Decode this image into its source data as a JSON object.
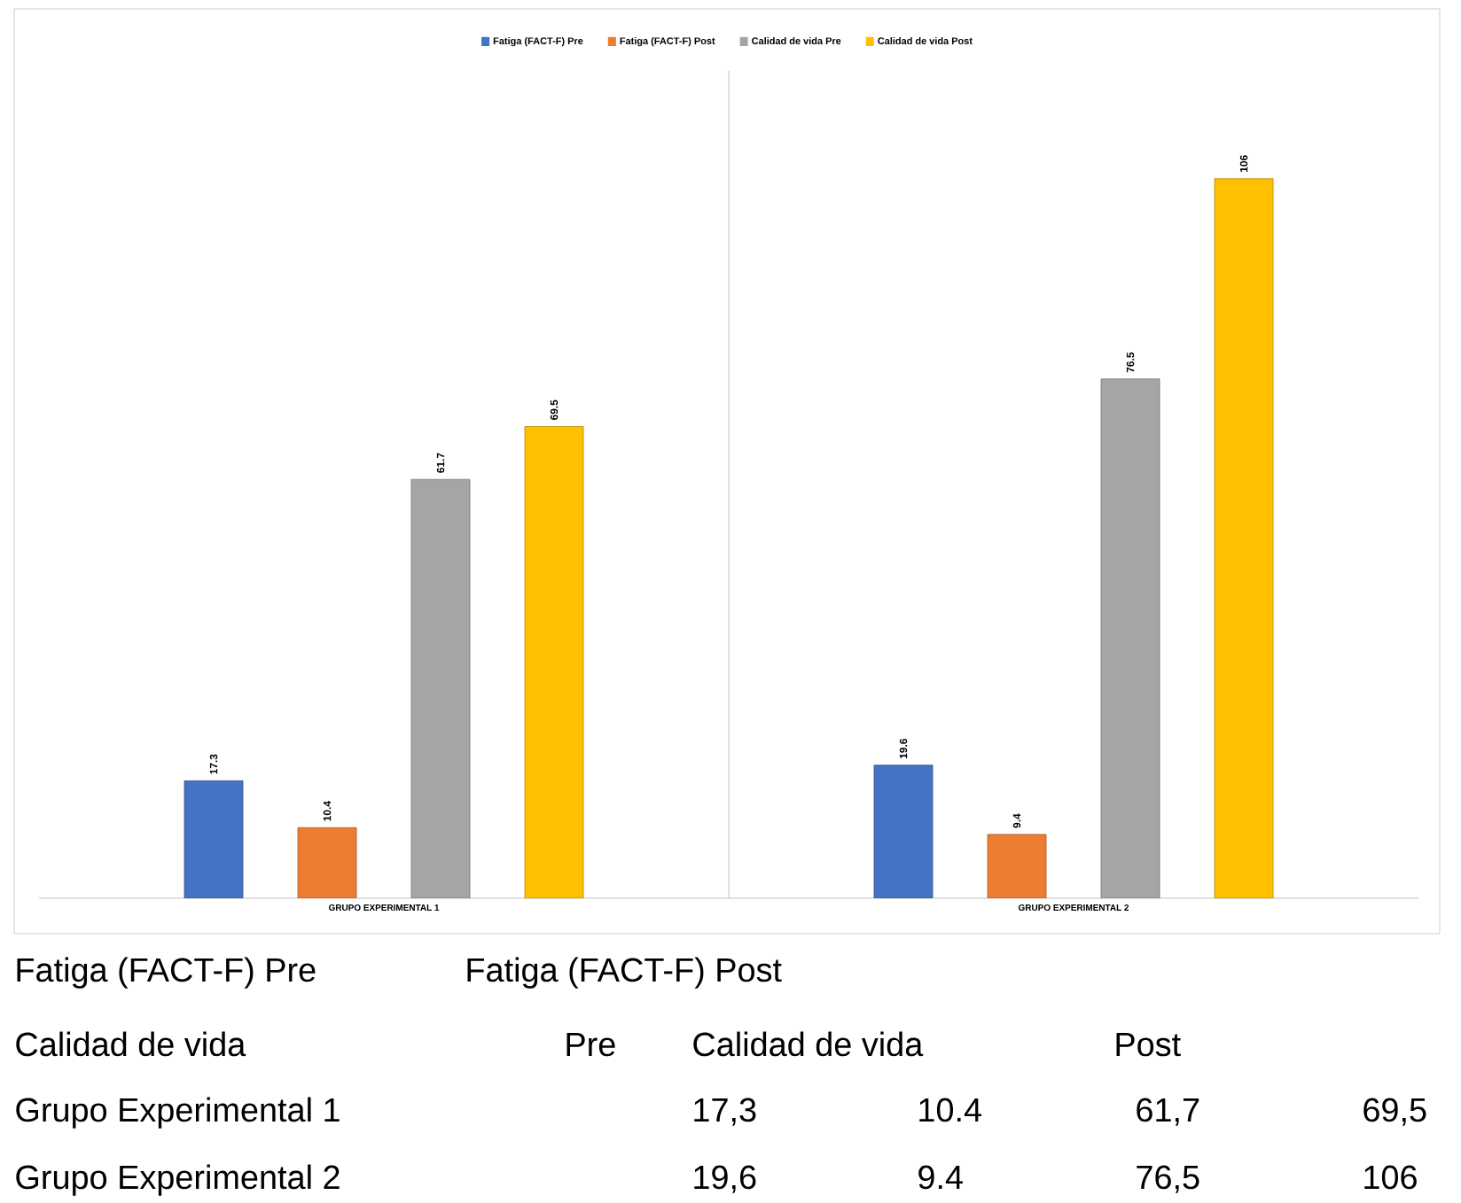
{
  "chart_data": {
    "type": "bar",
    "categories": [
      "GRUPO EXPERIMENTAL 1",
      "GRUPO EXPERIMENTAL 2"
    ],
    "series": [
      {
        "name": "Fatiga (FACT-F) Pre",
        "color": "#4472c4",
        "values": [
          17.3,
          19.6
        ]
      },
      {
        "name": "Fatiga (FACT-F) Post",
        "color": "#ed7d31",
        "values": [
          10.4,
          9.4
        ]
      },
      {
        "name": "Calidad de vida Pre",
        "color": "#a5a5a5",
        "values": [
          61.7,
          76.5
        ]
      },
      {
        "name": "Calidad de vida Post",
        "color": "#ffc000",
        "values": [
          69.5,
          106
        ]
      }
    ],
    "data_labels": true,
    "legend": "top",
    "annotations": [
      "Fatiga (FACT-F) Pre",
      "Fatiga (FACT-F) Post",
      "Calidad de vida",
      "Pre",
      "Calidad de vida",
      "Post",
      "Grupo Experimental 1",
      "17,3",
      "10.4",
      "61,7",
      "69,5",
      "Grupo Experimental 2",
      "19,6",
      "9.4",
      "76,5",
      "106"
    ]
  }
}
